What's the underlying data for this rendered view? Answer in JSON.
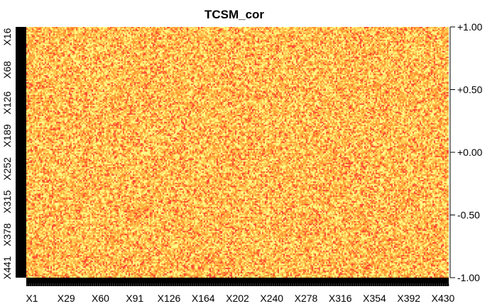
{
  "chart_data": {
    "type": "heatmap",
    "title": "TCSM_cor",
    "x_tick_labels": [
      "X1",
      "X29",
      "X60",
      "X91",
      "X126",
      "X164",
      "X202",
      "X240",
      "X278",
      "X316",
      "X354",
      "X392",
      "X430"
    ],
    "y_tick_labels": [
      "X16",
      "X68",
      "X126",
      "X189",
      "X252",
      "X315",
      "X378",
      "X441"
    ],
    "colorbar": {
      "labels": [
        "+1.00",
        "+0.50",
        "+0.00",
        "-0.50",
        "-1.00"
      ],
      "values": [
        1.0,
        0.5,
        0.0,
        -0.5,
        -1.0
      ],
      "range": [
        -1.0,
        1.0
      ]
    },
    "colors": {
      "low": "#ff9933",
      "mid": "#ffcc55",
      "high": "#ffff88",
      "red": "#ff4433",
      "axis": "#000000"
    }
  }
}
